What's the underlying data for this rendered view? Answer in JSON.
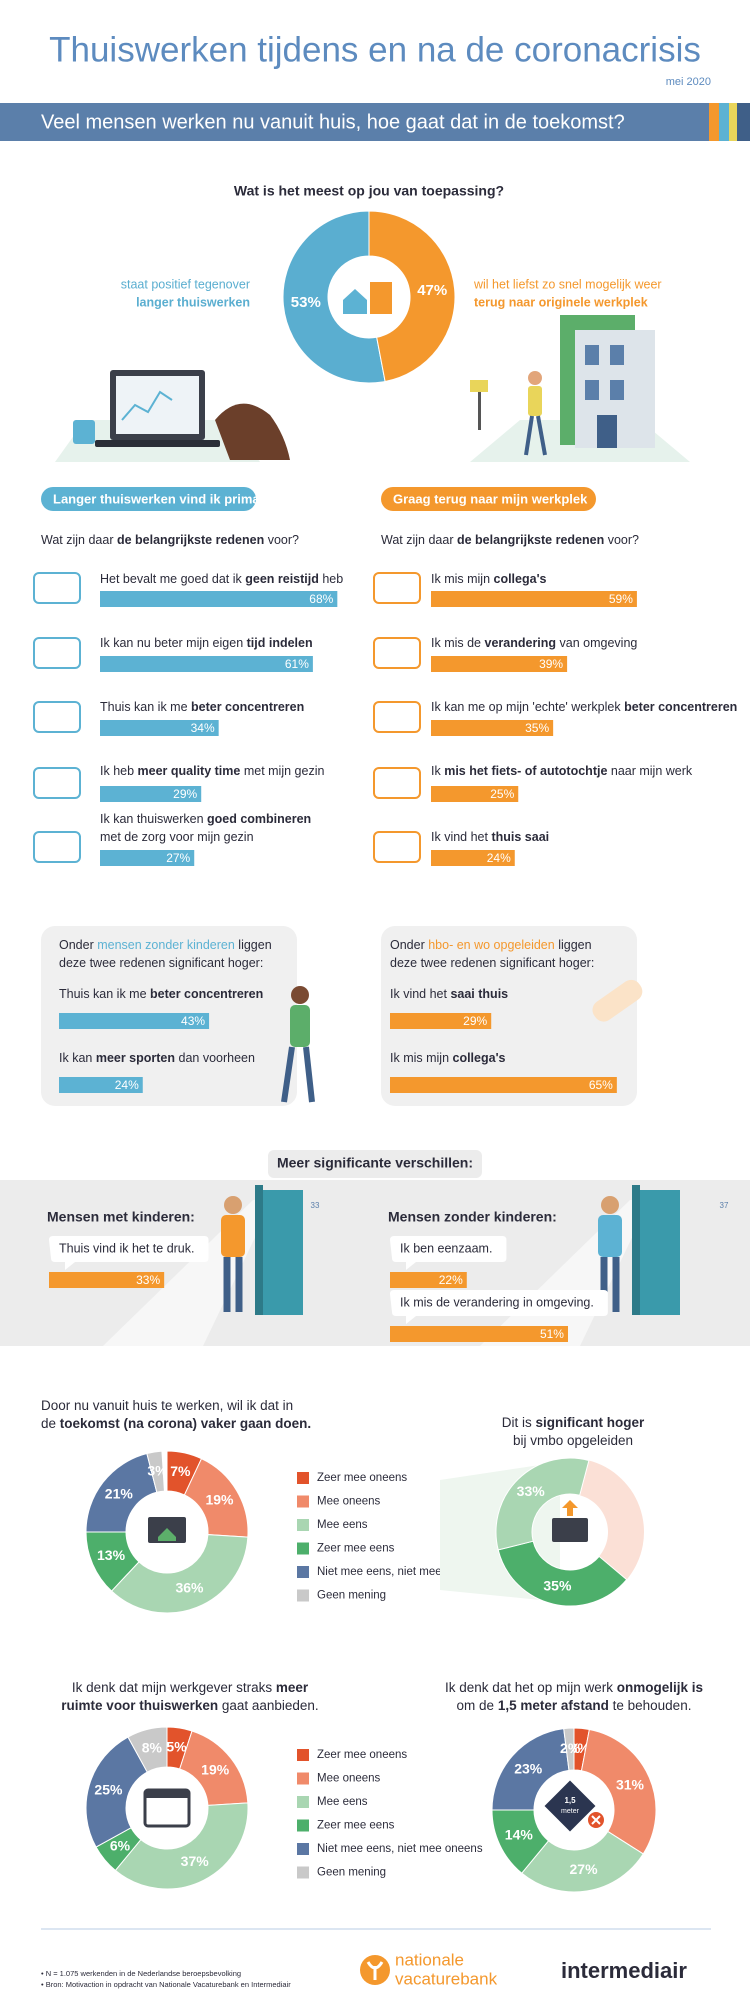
{
  "header": {
    "title": "Thuiswerken tijdens en na de coronacrisis",
    "date": "mei 2020",
    "banner": "Veel mensen werken nu vanuit huis, hoe gaat dat in de toekomst?"
  },
  "poll": {
    "type": "pie",
    "question": "Wat is het meest op jou van toepassing?",
    "values": [
      53,
      47
    ],
    "value_labels": [
      "53%",
      "47%"
    ],
    "colors": [
      "#5aaed0",
      "#f4982d"
    ],
    "left_text": [
      "staat positief tegenover",
      "langer thuiswerken"
    ],
    "right_text": [
      "wil het liefst zo snel mogelijk weer",
      "terug naar originele werkplek"
    ]
  },
  "reasons": {
    "left": {
      "heading": "Langer thuiswerken vind ik prima",
      "question": [
        "Wat zijn daar ",
        {
          "bold": "de belangrijkste redenen"
        },
        " voor?"
      ],
      "color": "#5cb2d3",
      "items": [
        {
          "lines": [
            [
              "Het bevalt me goed dat ik ",
              {
                "bold": "geen reistijd"
              },
              " heb"
            ]
          ],
          "value": 68,
          "label": "68%"
        },
        {
          "lines": [
            [
              "Ik kan nu beter mijn eigen ",
              {
                "bold": "tijd indelen"
              }
            ]
          ],
          "value": 61,
          "label": "61%"
        },
        {
          "lines": [
            [
              "Thuis kan ik me ",
              {
                "bold": "beter concentreren"
              }
            ]
          ],
          "value": 34,
          "label": "34%"
        },
        {
          "lines": [
            [
              "Ik heb ",
              {
                "bold": "meer quality time"
              },
              " met mijn gezin"
            ]
          ],
          "value": 29,
          "label": "29%"
        },
        {
          "lines": [
            [
              "Ik kan thuiswerken ",
              {
                "bold": "goed combineren"
              }
            ],
            [
              "met de zorg voor mijn gezin"
            ]
          ],
          "value": 27,
          "label": "27%"
        }
      ]
    },
    "right": {
      "heading": "Graag terug naar mijn werkplek",
      "question": [
        "Wat zijn daar ",
        {
          "bold": "de belangrijkste redenen"
        },
        " voor?"
      ],
      "color": "#f4982d",
      "items": [
        {
          "lines": [
            [
              "Ik mis mijn ",
              {
                "bold": "collega's"
              }
            ]
          ],
          "value": 59,
          "label": "59%"
        },
        {
          "lines": [
            [
              "Ik mis de ",
              {
                "bold": "verandering"
              },
              " van omgeving"
            ]
          ],
          "value": 39,
          "label": "39%"
        },
        {
          "lines": [
            [
              "Ik kan me op mijn 'echte' werkplek ",
              {
                "bold": "beter concentreren"
              }
            ]
          ],
          "value": 35,
          "label": "35%"
        },
        {
          "lines": [
            [
              "Ik ",
              {
                "bold": "mis het fiets- of autotochtje"
              },
              " naar mijn werk"
            ]
          ],
          "value": 25,
          "label": "25%"
        },
        {
          "lines": [
            [
              "Ik vind het ",
              {
                "bold": "thuis saai"
              }
            ]
          ],
          "value": 24,
          "label": "24%"
        }
      ]
    }
  },
  "boxes": [
    {
      "intro": [
        [
          "Onder ",
          {
            "bold": "mensen zonder kinderen"
          },
          " liggen"
        ],
        [
          "deze twee redenen significant hoger:"
        ]
      ],
      "color": "#5cb2d3",
      "items": [
        {
          "text": [
            "Thuis kan ik me ",
            {
              "bold": "beter concentreren"
            }
          ],
          "value": 43,
          "label": "43%"
        },
        {
          "text": [
            "Ik kan ",
            {
              "bold": "meer sporten"
            },
            " dan voorheen"
          ],
          "value": 24,
          "label": "24%"
        }
      ]
    },
    {
      "intro": [
        [
          "Onder ",
          {
            "bold": "hbo- en wo opgeleiden"
          },
          " liggen"
        ],
        [
          "deze twee redenen significant hoger:"
        ]
      ],
      "color": "#f4982d",
      "items": [
        {
          "text": [
            "Ik vind het ",
            {
              "bold": "saai thuis"
            }
          ],
          "value": 29,
          "label": "29%"
        },
        {
          "text": [
            "Ik mis mijn ",
            {
              "bold": "collega's"
            }
          ],
          "value": 65,
          "label": "65%"
        }
      ]
    }
  ],
  "differences": {
    "heading": "Meer significante verschillen:",
    "color": "#f4982d",
    "groups": [
      {
        "title": "Mensen met kinderen:",
        "door": "33",
        "items": [
          {
            "bubble": "Thuis vind ik het te druk.",
            "value": 33,
            "label": "33%"
          }
        ]
      },
      {
        "title": "Mensen zonder kinderen:",
        "door": "37",
        "items": [
          {
            "bubble": "Ik ben eenzaam.",
            "value": 22,
            "label": "22%"
          },
          {
            "bubble": "Ik mis de verandering in omgeving.",
            "value": 51,
            "label": "51%"
          }
        ]
      }
    ]
  },
  "chart_data": [
    {
      "type": "donut",
      "title": [
        [
          "Door nu vanuit huis te werken, wil ik dat in"
        ],
        [
          "de ",
          {
            "bold": "toekomst (na corona) vaker gaan doen."
          }
        ]
      ],
      "categories": [
        "Zeer mee oneens",
        "Mee oneens",
        "Mee eens",
        "Zeer mee eens",
        "Niet mee eens, niet mee oneens",
        "Geen mening"
      ],
      "colors": [
        "#e2532b",
        "#f08a6a",
        "#a9d6b2",
        "#4daf6b",
        "#5b77a3",
        "#c9c9c9"
      ],
      "values": [
        7,
        19,
        36,
        13,
        21,
        3
      ],
      "value_labels": [
        "7%",
        "19%",
        "36%",
        "13%",
        "21%",
        "3%"
      ]
    },
    {
      "type": "donut",
      "title": [
        [
          "Dit is ",
          {
            "bold": "significant hoger"
          }
        ],
        [
          "bij vmbo opgeleiden"
        ]
      ],
      "colors": [
        "#4daf6b",
        "#a9d6b2"
      ],
      "values": [
        35,
        33
      ],
      "value_labels": [
        "35%",
        "33%"
      ]
    },
    {
      "type": "donut",
      "title": [
        [
          "Ik denk dat mijn werkgever straks ",
          {
            "bold": "meer"
          }
        ],
        [
          {
            "bold": "ruimte voor thuiswerken"
          },
          " gaat aanbieden."
        ]
      ],
      "categories": [
        "Zeer mee oneens",
        "Mee oneens",
        "Mee eens",
        "Zeer mee eens",
        "Niet mee eens, niet mee oneens",
        "Geen mening"
      ],
      "colors": [
        "#e2532b",
        "#f08a6a",
        "#a9d6b2",
        "#4daf6b",
        "#5b77a3",
        "#c9c9c9"
      ],
      "values": [
        5,
        19,
        37,
        6,
        25,
        8
      ],
      "value_labels": [
        "5%",
        "19%",
        "37%",
        "6%",
        "25%",
        "8%"
      ]
    },
    {
      "type": "donut",
      "title": [
        [
          "Ik denk dat het op mijn werk ",
          {
            "bold": "onmogelijk is"
          }
        ],
        [
          "om de ",
          {
            "bold": "1,5 meter afstand"
          },
          " te behouden."
        ]
      ],
      "colors": [
        "#e2532b",
        "#f08a6a",
        "#a9d6b2",
        "#4daf6b",
        "#5b77a3",
        "#c9c9c9"
      ],
      "values": [
        3,
        31,
        27,
        14,
        23,
        2
      ],
      "value_labels": [
        "3%",
        "31%",
        "27%",
        "14%",
        "23%",
        "2%"
      ],
      "icon_text": [
        "1,5",
        "meter"
      ]
    }
  ],
  "footer": {
    "notes": [
      "• N = 1.075 werkenden in de Nederlandse beroepsbevolking",
      "• Bron: Motivaction in opdracht van Nationale Vacaturebank en Intermediair"
    ],
    "logo_left": [
      "nationale",
      "vacaturebank"
    ],
    "logo_right": "intermediair"
  }
}
